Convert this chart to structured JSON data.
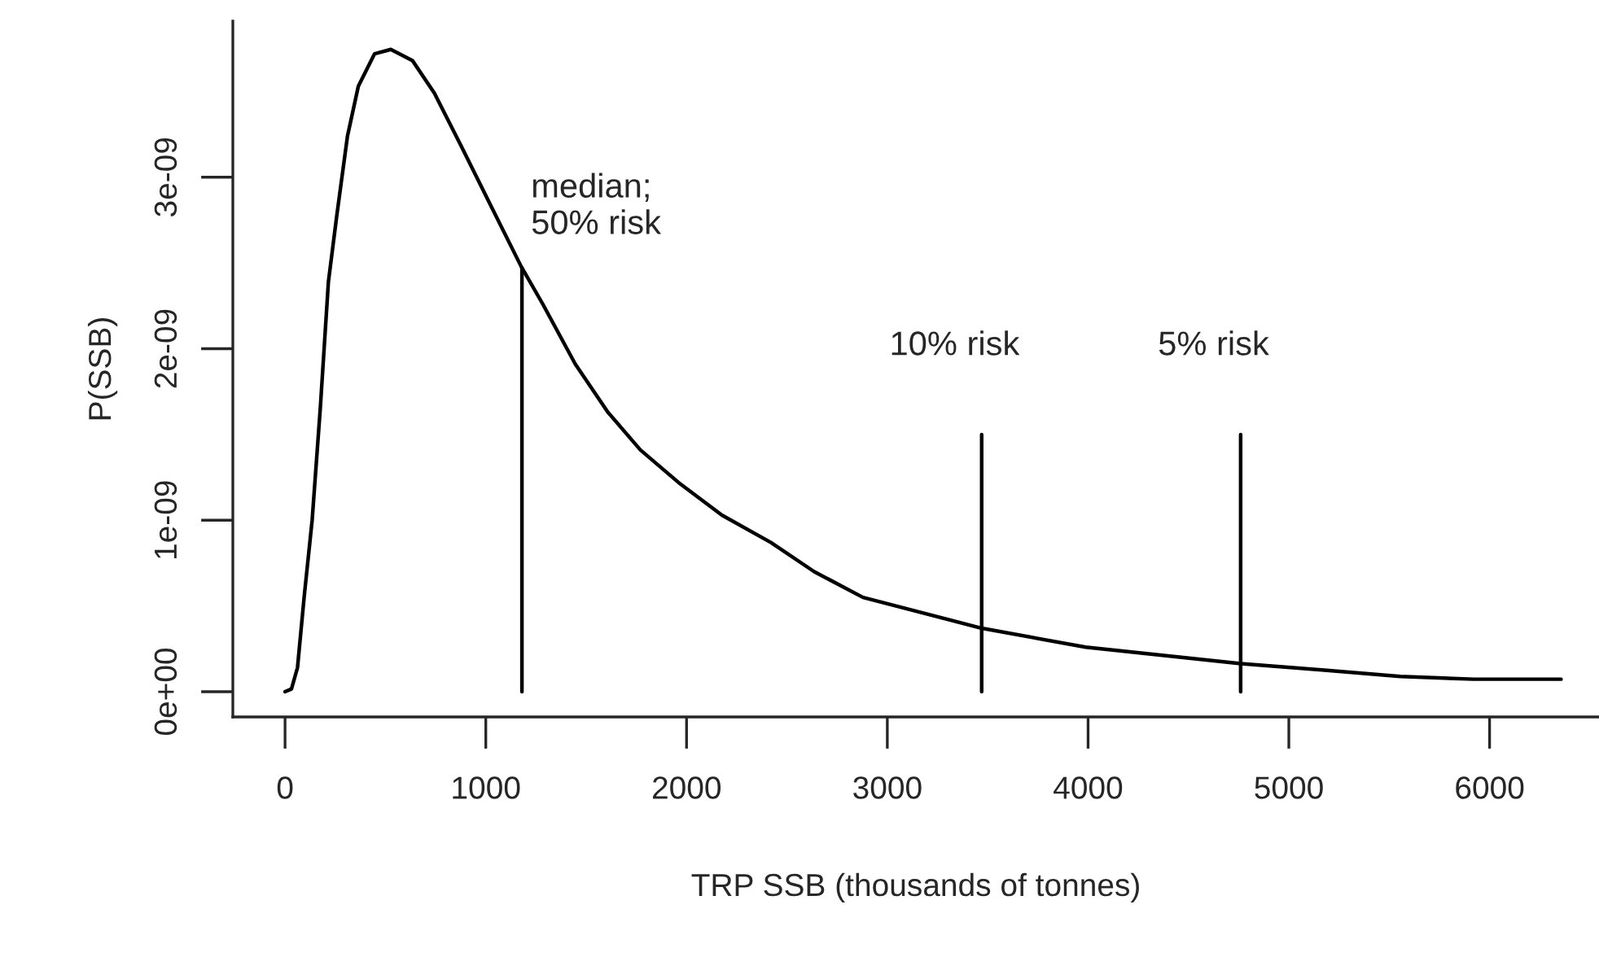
{
  "chart_data": {
    "type": "line",
    "xlabel": "TRP SSB (thousands of tonnes)",
    "ylabel": "P(SSB)",
    "series": [
      {
        "color": "#000000",
        "x": [
          0,
          32,
          62,
          95,
          135,
          176,
          216,
          257,
          311,
          365,
          446,
          527,
          635,
          744,
          878,
          1014,
          1176,
          1284,
          1446,
          1608,
          1770,
          1960,
          2176,
          2420,
          2636,
          2879,
          3471,
          3988,
          4761,
          5177,
          5556,
          5921,
          6356
        ],
        "values": [
          0,
          1.6e-11,
          1.4e-10,
          5.5e-10,
          1e-09,
          1.66e-09,
          2.39e-09,
          2.77e-09,
          3.24e-09,
          3.53e-09,
          3.72e-09,
          3.745e-09,
          3.68e-09,
          3.49e-09,
          3.18e-09,
          2.86e-09,
          2.48e-09,
          2.26e-09,
          1.91e-09,
          1.63e-09,
          1.41e-09,
          1.22e-09,
          1.03e-09,
          8.7e-10,
          7e-10,
          5.5e-10,
          3.7e-10,
          2.6e-10,
          1.64e-10,
          1.26e-10,
          8.9e-11,
          7.3e-11,
          7.3e-11
        ]
      },
      {
        "color": "#000000",
        "x": [
          1180,
          1180
        ],
        "values": [
          0,
          2.47e-09
        ]
      },
      {
        "color": "#000000",
        "x": [
          3470,
          3470
        ],
        "values": [
          0,
          1.5e-09
        ]
      },
      {
        "color": "#000000",
        "x": [
          4760,
          4760
        ],
        "values": [
          0,
          1.5e-09
        ]
      }
    ],
    "annotations": [
      "median;\n50% risk",
      "10% risk",
      "5% risk"
    ],
    "xlim": [
      -260,
      6545
    ],
    "ylim": [
      -1.47e-10,
      3.91e-09
    ],
    "xticks": [
      0,
      1000,
      2000,
      3000,
      4000,
      5000,
      6000
    ],
    "yticks": [
      {
        "value": 0,
        "label": "0e+00"
      },
      {
        "value": 1e-09,
        "label": "1e-09"
      },
      {
        "value": 2e-09,
        "label": "2e-09"
      },
      {
        "value": 3e-09,
        "label": "3e-09"
      }
    ],
    "grid": false,
    "legend": false,
    "marker": "none",
    "line_style": "solid"
  }
}
